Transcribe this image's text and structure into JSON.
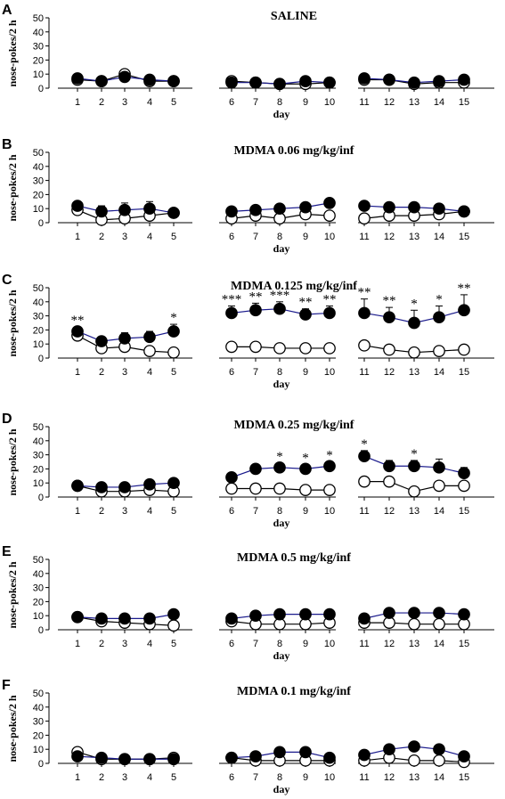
{
  "figure": {
    "xlabel": "day",
    "ylabel": "nose-pokes/2 h",
    "yticks": [
      0,
      10,
      20,
      30,
      40,
      50
    ],
    "days": [
      1,
      2,
      3,
      4,
      5,
      6,
      7,
      8,
      9,
      10,
      11,
      12,
      13,
      14,
      15
    ]
  },
  "chart_data": [
    {
      "type": "line",
      "panel": "A",
      "title": "SALINE",
      "ylim": [
        0,
        50
      ],
      "xlabel": "day",
      "ylabel": "nose-pokes/2 h",
      "series": [
        {
          "marker": "filled",
          "values": [
            7,
            5,
            8,
            6,
            5,
            4,
            4,
            3,
            5,
            4,
            7,
            6,
            4,
            5,
            6
          ],
          "errors": [
            2,
            1,
            2,
            1,
            1,
            1,
            1,
            1,
            1,
            2,
            2,
            1,
            1,
            1,
            3
          ]
        },
        {
          "marker": "open",
          "values": [
            6,
            5,
            10,
            5,
            5,
            5,
            4,
            3,
            3,
            4,
            6,
            6,
            3,
            4,
            4
          ],
          "errors": [
            2,
            1,
            3,
            1,
            1,
            1,
            1,
            1,
            1,
            1,
            2,
            1,
            1,
            1,
            1
          ]
        }
      ],
      "annotations": []
    },
    {
      "type": "line",
      "panel": "B",
      "title": "MDMA 0.06 mg/kg/inf",
      "ylim": [
        0,
        50
      ],
      "xlabel": "day",
      "ylabel": "nose-pokes/2 h",
      "series": [
        {
          "marker": "filled",
          "values": [
            12,
            8,
            9,
            10,
            7,
            8,
            9,
            10,
            11,
            14,
            12,
            11,
            11,
            10,
            8
          ],
          "errors": [
            2,
            4,
            5,
            5,
            2,
            1,
            3,
            2,
            2,
            2,
            2,
            1,
            1,
            2,
            1
          ]
        },
        {
          "marker": "open",
          "values": [
            9,
            2,
            3,
            5,
            7,
            3,
            5,
            3,
            6,
            5,
            3,
            5,
            5,
            6,
            8
          ],
          "errors": [
            1,
            1,
            1,
            1,
            1,
            1,
            1,
            1,
            1,
            1,
            1,
            1,
            1,
            1,
            1
          ]
        }
      ],
      "annotations": []
    },
    {
      "type": "line",
      "panel": "C",
      "title": "MDMA 0.125 mg/kg/inf",
      "ylim": [
        0,
        50
      ],
      "xlabel": "day",
      "ylabel": "nose-pokes/2 h",
      "series": [
        {
          "marker": "filled",
          "values": [
            19,
            12,
            14,
            15,
            19,
            32,
            34,
            35,
            31,
            32,
            32,
            29,
            25,
            29,
            34
          ],
          "errors": [
            3,
            2,
            4,
            4,
            5,
            5,
            5,
            5,
            4,
            5,
            10,
            7,
            9,
            8,
            11
          ]
        },
        {
          "marker": "open",
          "values": [
            16,
            7,
            8,
            5,
            4,
            8,
            8,
            7,
            7,
            7,
            9,
            6,
            4,
            5,
            6
          ],
          "errors": [
            1,
            1,
            1,
            1,
            1,
            1,
            1,
            1,
            1,
            1,
            1,
            1,
            1,
            1,
            1
          ]
        }
      ],
      "annotations": [
        {
          "day": 1,
          "text": "**"
        },
        {
          "day": 5,
          "text": "*"
        },
        {
          "day": 6,
          "text": "***"
        },
        {
          "day": 7,
          "text": "**"
        },
        {
          "day": 8,
          "text": "***"
        },
        {
          "day": 9,
          "text": "**"
        },
        {
          "day": 10,
          "text": "**"
        },
        {
          "day": 11,
          "text": "**"
        },
        {
          "day": 12,
          "text": "**"
        },
        {
          "day": 13,
          "text": "*"
        },
        {
          "day": 14,
          "text": "*"
        },
        {
          "day": 15,
          "text": "**"
        }
      ]
    },
    {
      "type": "line",
      "panel": "D",
      "title": "MDMA 0.25 mg/kg/inf",
      "ylim": [
        0,
        50
      ],
      "xlabel": "day",
      "ylabel": "nose-pokes/2 h",
      "series": [
        {
          "marker": "filled",
          "values": [
            8,
            7,
            7,
            9,
            10,
            14,
            20,
            21,
            20,
            22,
            29,
            22,
            22,
            21,
            17
          ],
          "errors": [
            1,
            1,
            1,
            2,
            2,
            2,
            3,
            3,
            3,
            3,
            4,
            4,
            4,
            6,
            4
          ]
        },
        {
          "marker": "open",
          "values": [
            8,
            4,
            4,
            5,
            4,
            6,
            6,
            6,
            5,
            5,
            11,
            11,
            4,
            8,
            8
          ],
          "errors": [
            1,
            1,
            1,
            1,
            1,
            1,
            1,
            1,
            1,
            1,
            2,
            3,
            1,
            1,
            1
          ]
        }
      ],
      "annotations": [
        {
          "day": 8,
          "text": "*"
        },
        {
          "day": 9,
          "text": "*"
        },
        {
          "day": 10,
          "text": "*"
        },
        {
          "day": 11,
          "text": "*"
        },
        {
          "day": 13,
          "text": "*"
        }
      ]
    },
    {
      "type": "line",
      "panel": "E",
      "title": "MDMA 0.5 mg/kg/inf",
      "ylim": [
        0,
        50
      ],
      "xlabel": "day",
      "ylabel": "nose-pokes/2 h",
      "series": [
        {
          "marker": "filled",
          "values": [
            9,
            8,
            8,
            8,
            11,
            8,
            10,
            11,
            11,
            11,
            8,
            12,
            12,
            12,
            11
          ],
          "errors": [
            1,
            1,
            1,
            1,
            1,
            1,
            1,
            1,
            1,
            1,
            1,
            2,
            2,
            2,
            1
          ]
        },
        {
          "marker": "open",
          "values": [
            9,
            6,
            5,
            4,
            3,
            6,
            4,
            4,
            4,
            5,
            5,
            5,
            4,
            4,
            4
          ],
          "errors": [
            1,
            1,
            1,
            1,
            1,
            1,
            1,
            1,
            1,
            1,
            1,
            1,
            1,
            1,
            1
          ]
        }
      ],
      "annotations": []
    },
    {
      "type": "line",
      "panel": "F",
      "title": "MDMA 0.1 mg/kg/inf",
      "ylim": [
        0,
        50
      ],
      "xlabel": "day",
      "ylabel": "nose-pokes/2 h",
      "series": [
        {
          "marker": "filled",
          "values": [
            5,
            4,
            3,
            3,
            3,
            4,
            5,
            8,
            8,
            4,
            6,
            10,
            12,
            10,
            5
          ],
          "errors": [
            1,
            1,
            1,
            1,
            1,
            1,
            1,
            2,
            2,
            1,
            1,
            2,
            3,
            2,
            1
          ]
        },
        {
          "marker": "open",
          "values": [
            8,
            3,
            3,
            3,
            4,
            4,
            2,
            2,
            2,
            2,
            2,
            4,
            2,
            2,
            1
          ],
          "errors": [
            1,
            1,
            1,
            1,
            1,
            1,
            1,
            1,
            1,
            1,
            1,
            1,
            1,
            1,
            1
          ]
        }
      ],
      "annotations": []
    }
  ]
}
